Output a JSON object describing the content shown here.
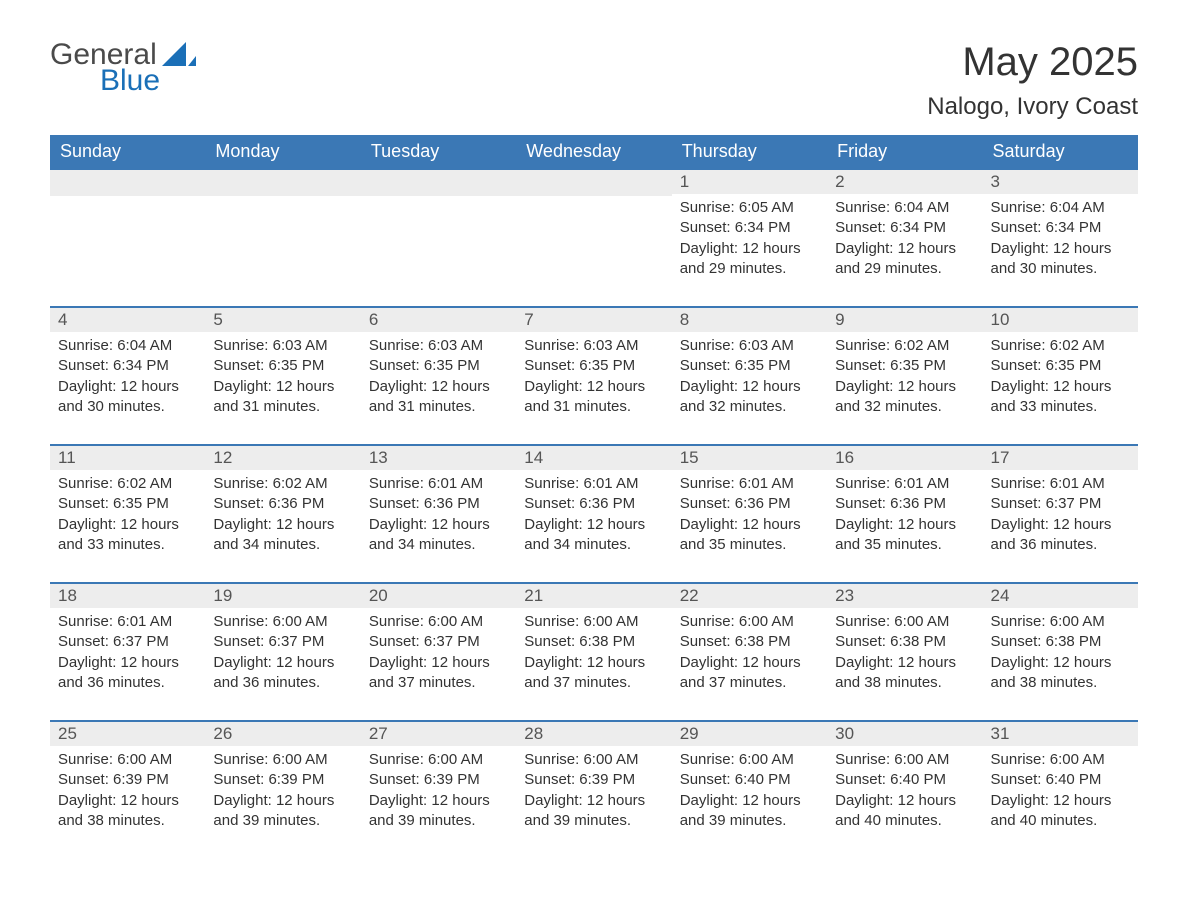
{
  "logo": {
    "text1": "General",
    "text2": "Blue",
    "sail_color": "#1a6fb7"
  },
  "title": "May 2025",
  "location": "Nalogo, Ivory Coast",
  "colors": {
    "header_bg": "#3b78b5",
    "header_text": "#ffffff",
    "daybar_bg": "#ededed",
    "rule": "#3b78b5",
    "body_text": "#333333"
  },
  "day_headers": [
    "Sunday",
    "Monday",
    "Tuesday",
    "Wednesday",
    "Thursday",
    "Friday",
    "Saturday"
  ],
  "weeks": [
    [
      null,
      null,
      null,
      null,
      {
        "n": "1",
        "sunrise": "6:05 AM",
        "sunset": "6:34 PM",
        "daylight": "12 hours and 29 minutes."
      },
      {
        "n": "2",
        "sunrise": "6:04 AM",
        "sunset": "6:34 PM",
        "daylight": "12 hours and 29 minutes."
      },
      {
        "n": "3",
        "sunrise": "6:04 AM",
        "sunset": "6:34 PM",
        "daylight": "12 hours and 30 minutes."
      }
    ],
    [
      {
        "n": "4",
        "sunrise": "6:04 AM",
        "sunset": "6:34 PM",
        "daylight": "12 hours and 30 minutes."
      },
      {
        "n": "5",
        "sunrise": "6:03 AM",
        "sunset": "6:35 PM",
        "daylight": "12 hours and 31 minutes."
      },
      {
        "n": "6",
        "sunrise": "6:03 AM",
        "sunset": "6:35 PM",
        "daylight": "12 hours and 31 minutes."
      },
      {
        "n": "7",
        "sunrise": "6:03 AM",
        "sunset": "6:35 PM",
        "daylight": "12 hours and 31 minutes."
      },
      {
        "n": "8",
        "sunrise": "6:03 AM",
        "sunset": "6:35 PM",
        "daylight": "12 hours and 32 minutes."
      },
      {
        "n": "9",
        "sunrise": "6:02 AM",
        "sunset": "6:35 PM",
        "daylight": "12 hours and 32 minutes."
      },
      {
        "n": "10",
        "sunrise": "6:02 AM",
        "sunset": "6:35 PM",
        "daylight": "12 hours and 33 minutes."
      }
    ],
    [
      {
        "n": "11",
        "sunrise": "6:02 AM",
        "sunset": "6:35 PM",
        "daylight": "12 hours and 33 minutes."
      },
      {
        "n": "12",
        "sunrise": "6:02 AM",
        "sunset": "6:36 PM",
        "daylight": "12 hours and 34 minutes."
      },
      {
        "n": "13",
        "sunrise": "6:01 AM",
        "sunset": "6:36 PM",
        "daylight": "12 hours and 34 minutes."
      },
      {
        "n": "14",
        "sunrise": "6:01 AM",
        "sunset": "6:36 PM",
        "daylight": "12 hours and 34 minutes."
      },
      {
        "n": "15",
        "sunrise": "6:01 AM",
        "sunset": "6:36 PM",
        "daylight": "12 hours and 35 minutes."
      },
      {
        "n": "16",
        "sunrise": "6:01 AM",
        "sunset": "6:36 PM",
        "daylight": "12 hours and 35 minutes."
      },
      {
        "n": "17",
        "sunrise": "6:01 AM",
        "sunset": "6:37 PM",
        "daylight": "12 hours and 36 minutes."
      }
    ],
    [
      {
        "n": "18",
        "sunrise": "6:01 AM",
        "sunset": "6:37 PM",
        "daylight": "12 hours and 36 minutes."
      },
      {
        "n": "19",
        "sunrise": "6:00 AM",
        "sunset": "6:37 PM",
        "daylight": "12 hours and 36 minutes."
      },
      {
        "n": "20",
        "sunrise": "6:00 AM",
        "sunset": "6:37 PM",
        "daylight": "12 hours and 37 minutes."
      },
      {
        "n": "21",
        "sunrise": "6:00 AM",
        "sunset": "6:38 PM",
        "daylight": "12 hours and 37 minutes."
      },
      {
        "n": "22",
        "sunrise": "6:00 AM",
        "sunset": "6:38 PM",
        "daylight": "12 hours and 37 minutes."
      },
      {
        "n": "23",
        "sunrise": "6:00 AM",
        "sunset": "6:38 PM",
        "daylight": "12 hours and 38 minutes."
      },
      {
        "n": "24",
        "sunrise": "6:00 AM",
        "sunset": "6:38 PM",
        "daylight": "12 hours and 38 minutes."
      }
    ],
    [
      {
        "n": "25",
        "sunrise": "6:00 AM",
        "sunset": "6:39 PM",
        "daylight": "12 hours and 38 minutes."
      },
      {
        "n": "26",
        "sunrise": "6:00 AM",
        "sunset": "6:39 PM",
        "daylight": "12 hours and 39 minutes."
      },
      {
        "n": "27",
        "sunrise": "6:00 AM",
        "sunset": "6:39 PM",
        "daylight": "12 hours and 39 minutes."
      },
      {
        "n": "28",
        "sunrise": "6:00 AM",
        "sunset": "6:39 PM",
        "daylight": "12 hours and 39 minutes."
      },
      {
        "n": "29",
        "sunrise": "6:00 AM",
        "sunset": "6:40 PM",
        "daylight": "12 hours and 39 minutes."
      },
      {
        "n": "30",
        "sunrise": "6:00 AM",
        "sunset": "6:40 PM",
        "daylight": "12 hours and 40 minutes."
      },
      {
        "n": "31",
        "sunrise": "6:00 AM",
        "sunset": "6:40 PM",
        "daylight": "12 hours and 40 minutes."
      }
    ]
  ],
  "labels": {
    "sunrise": "Sunrise:",
    "sunset": "Sunset:",
    "daylight": "Daylight:"
  }
}
